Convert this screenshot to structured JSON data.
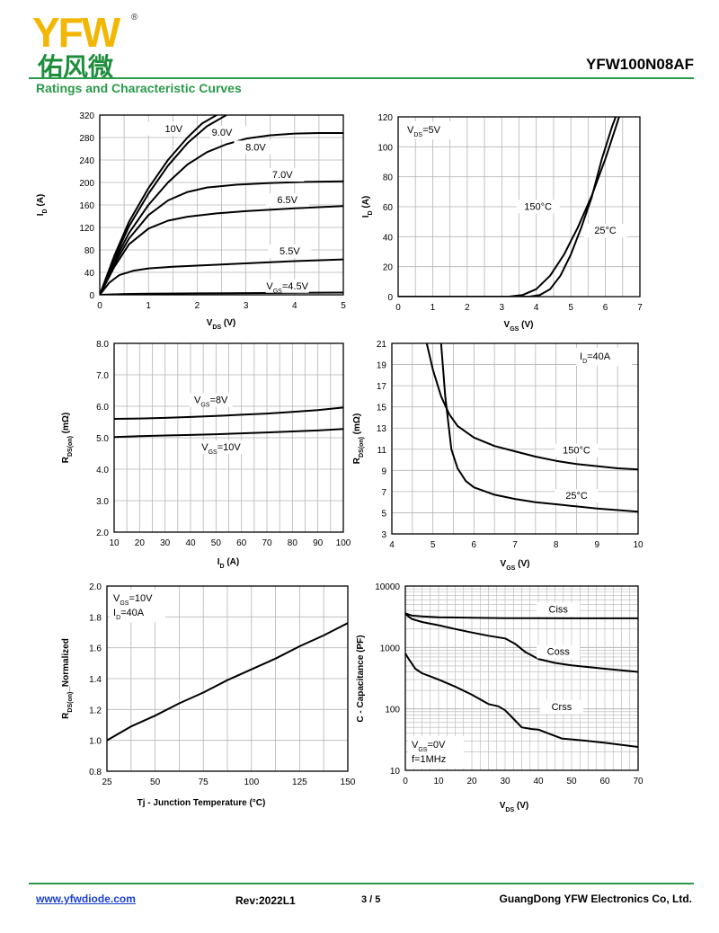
{
  "header": {
    "logo_text": "YFW",
    "logo_chinese": "佑风微",
    "registered_mark": "®",
    "part_number": "YFW100N08AF",
    "section_title": "Ratings and Characteristic Curves"
  },
  "footer": {
    "website": "www.yfwdiode.com",
    "revision": "Rev:2022L1",
    "page": "3 / 5",
    "company": "GuangDong YFW Electronics Co, Ltd."
  },
  "colors": {
    "accent": "#2a9a4a",
    "logo_yellow": "#f2b705",
    "logo_green": "#1f8e3c",
    "link": "#1a3fd0"
  },
  "chart_data": [
    {
      "id": "output",
      "type": "line",
      "xlabel": "VDS (V)",
      "ylabel": "ID (A)",
      "xlim": [
        0,
        5
      ],
      "ylim": [
        0,
        320
      ],
      "xticks": [
        0,
        1,
        2,
        3,
        4,
        5
      ],
      "yticks": [
        0,
        40,
        80,
        120,
        160,
        200,
        240,
        280,
        320
      ],
      "grid": true,
      "series": [
        {
          "name": "10V",
          "points": [
            [
              0,
              0
            ],
            [
              0.3,
              70
            ],
            [
              0.6,
              130
            ],
            [
              1.0,
              190
            ],
            [
              1.4,
              240
            ],
            [
              1.8,
              280
            ],
            [
              2.1,
              305
            ],
            [
              2.4,
              320
            ]
          ]
        },
        {
          "name": "9.0V",
          "points": [
            [
              0,
              0
            ],
            [
              0.3,
              65
            ],
            [
              0.6,
              122
            ],
            [
              1.0,
              180
            ],
            [
              1.4,
              230
            ],
            [
              1.8,
              270
            ],
            [
              2.2,
              300
            ],
            [
              2.6,
              320
            ]
          ]
        },
        {
          "name": "8.0V",
          "points": [
            [
              0,
              0
            ],
            [
              0.3,
              60
            ],
            [
              0.6,
              110
            ],
            [
              1.0,
              160
            ],
            [
              1.4,
              200
            ],
            [
              1.8,
              232
            ],
            [
              2.2,
              254
            ],
            [
              2.6,
              268
            ],
            [
              3.0,
              278
            ],
            [
              3.5,
              284
            ],
            [
              4.0,
              287
            ],
            [
              4.5,
              288
            ],
            [
              5.0,
              288
            ]
          ]
        },
        {
          "name": "7.0V",
          "points": [
            [
              0,
              0
            ],
            [
              0.3,
              55
            ],
            [
              0.6,
              100
            ],
            [
              1.0,
              142
            ],
            [
              1.4,
              168
            ],
            [
              1.8,
              183
            ],
            [
              2.2,
              191
            ],
            [
              2.8,
              196
            ],
            [
              3.5,
              199
            ],
            [
              4.2,
              201
            ],
            [
              5.0,
              202
            ]
          ]
        },
        {
          "name": "6.5V",
          "points": [
            [
              0,
              0
            ],
            [
              0.3,
              50
            ],
            [
              0.6,
              90
            ],
            [
              1.0,
              118
            ],
            [
              1.4,
              132
            ],
            [
              1.8,
              139
            ],
            [
              2.4,
              145
            ],
            [
              3.0,
              149
            ],
            [
              4.0,
              154
            ],
            [
              5.0,
              158
            ]
          ]
        },
        {
          "name": "5.5V",
          "points": [
            [
              0,
              0
            ],
            [
              0.2,
              22
            ],
            [
              0.4,
              35
            ],
            [
              0.7,
              43
            ],
            [
              1.0,
              47
            ],
            [
              1.5,
              50
            ],
            [
              2.0,
              52
            ],
            [
              3.0,
              56
            ],
            [
              4.0,
              60
            ],
            [
              5.0,
              63
            ]
          ]
        },
        {
          "name": "VGS=4.5V",
          "points": [
            [
              0,
              0
            ],
            [
              0.5,
              1.5
            ],
            [
              1,
              2
            ],
            [
              2,
              2.5
            ],
            [
              3,
              3
            ],
            [
              4,
              3.5
            ],
            [
              5,
              4
            ]
          ]
        }
      ]
    },
    {
      "id": "transfer",
      "type": "line",
      "xlabel": "VGS (V)",
      "ylabel": "ID (A)",
      "xlim": [
        0,
        7
      ],
      "ylim": [
        0,
        120
      ],
      "xticks": [
        0,
        1,
        2,
        3,
        4,
        5,
        6,
        7
      ],
      "yticks": [
        0,
        20,
        40,
        60,
        80,
        100,
        120
      ],
      "grid": true,
      "annotation": "VDS=5V",
      "series": [
        {
          "name": "150°C",
          "points": [
            [
              0,
              0
            ],
            [
              3.2,
              0
            ],
            [
              3.6,
              1
            ],
            [
              4.0,
              5
            ],
            [
              4.4,
              14
            ],
            [
              4.8,
              28
            ],
            [
              5.2,
              46
            ],
            [
              5.6,
              67
            ],
            [
              6.0,
              92
            ],
            [
              6.3,
              113
            ],
            [
              6.4,
              120
            ]
          ]
        },
        {
          "name": "25°C",
          "points": [
            [
              0,
              0
            ],
            [
              3.8,
              0
            ],
            [
              4.1,
              1
            ],
            [
              4.4,
              5
            ],
            [
              4.7,
              14
            ],
            [
              5.0,
              28
            ],
            [
              5.3,
              46
            ],
            [
              5.6,
              66
            ],
            [
              5.9,
              92
            ],
            [
              6.2,
              114
            ],
            [
              6.3,
              120
            ]
          ]
        }
      ]
    },
    {
      "id": "rds-vs-id",
      "type": "line",
      "xlabel": "ID (A)",
      "ylabel": "RDS(on) (mΩ)",
      "xlim": [
        10,
        100
      ],
      "ylim": [
        2.0,
        8.0
      ],
      "xticks": [
        10,
        20,
        30,
        40,
        50,
        60,
        70,
        80,
        90,
        100
      ],
      "yticks": [
        2.0,
        3.0,
        4.0,
        5.0,
        6.0,
        7.0,
        8.0
      ],
      "grid": true,
      "series": [
        {
          "name": "VGS=8V",
          "points": [
            [
              10,
              5.6
            ],
            [
              20,
              5.61
            ],
            [
              30,
              5.63
            ],
            [
              40,
              5.66
            ],
            [
              50,
              5.69
            ],
            [
              60,
              5.73
            ],
            [
              70,
              5.77
            ],
            [
              80,
              5.82
            ],
            [
              90,
              5.88
            ],
            [
              100,
              5.96
            ]
          ]
        },
        {
          "name": "VGS=10V",
          "points": [
            [
              10,
              5.02
            ],
            [
              20,
              5.05
            ],
            [
              30,
              5.07
            ],
            [
              40,
              5.09
            ],
            [
              50,
              5.11
            ],
            [
              60,
              5.14
            ],
            [
              70,
              5.17
            ],
            [
              80,
              5.2
            ],
            [
              90,
              5.23
            ],
            [
              100,
              5.28
            ]
          ]
        }
      ]
    },
    {
      "id": "rds-vs-vgs",
      "type": "line",
      "xlabel": "VGS (V)",
      "ylabel": "RDS(on) (mΩ)",
      "xlim": [
        4,
        10
      ],
      "ylim": [
        3,
        21
      ],
      "xticks": [
        4,
        5,
        6,
        7,
        8,
        9,
        10
      ],
      "yticks": [
        3,
        5,
        7,
        9,
        11,
        13,
        15,
        17,
        19,
        21
      ],
      "grid": true,
      "annotation": "ID=40A",
      "series": [
        {
          "name": "150°C",
          "points": [
            [
              4.85,
              21
            ],
            [
              5.0,
              18.5
            ],
            [
              5.2,
              16
            ],
            [
              5.4,
              14.3
            ],
            [
              5.6,
              13.2
            ],
            [
              6.0,
              12.1
            ],
            [
              6.5,
              11.3
            ],
            [
              7.0,
              10.8
            ],
            [
              7.5,
              10.3
            ],
            [
              8.0,
              9.9
            ],
            [
              8.5,
              9.6
            ],
            [
              9.0,
              9.4
            ],
            [
              9.5,
              9.2
            ],
            [
              10.0,
              9.1
            ]
          ]
        },
        {
          "name": "25°C",
          "points": [
            [
              5.2,
              21
            ],
            [
              5.3,
              16
            ],
            [
              5.45,
              11
            ],
            [
              5.6,
              9.2
            ],
            [
              5.8,
              8.0
            ],
            [
              6.0,
              7.4
            ],
            [
              6.5,
              6.7
            ],
            [
              7.0,
              6.3
            ],
            [
              7.5,
              6.0
            ],
            [
              8.0,
              5.8
            ],
            [
              8.5,
              5.6
            ],
            [
              9.0,
              5.4
            ],
            [
              9.5,
              5.25
            ],
            [
              10.0,
              5.1
            ]
          ]
        }
      ]
    },
    {
      "id": "rds-norm-vs-tj",
      "type": "line",
      "xlabel": "Tj - Junction Temperature (°C)",
      "ylabel": "RDS(on)_Normalized",
      "xlim": [
        25,
        150
      ],
      "ylim": [
        0.8,
        2.0
      ],
      "xticks": [
        25,
        50,
        75,
        100,
        125,
        150
      ],
      "yticks": [
        0.8,
        1.0,
        1.2,
        1.4,
        1.6,
        1.8,
        2.0
      ],
      "grid": true,
      "annotation": [
        "VGS=10V",
        "ID=40A"
      ],
      "series": [
        {
          "name": "",
          "points": [
            [
              25,
              1.0
            ],
            [
              37.5,
              1.09
            ],
            [
              50,
              1.16
            ],
            [
              62.5,
              1.24
            ],
            [
              75,
              1.31
            ],
            [
              87.5,
              1.39
            ],
            [
              100,
              1.46
            ],
            [
              112.5,
              1.53
            ],
            [
              125,
              1.61
            ],
            [
              137.5,
              1.68
            ],
            [
              150,
              1.76
            ]
          ]
        }
      ]
    },
    {
      "id": "capacitance",
      "type": "line",
      "scale": "log",
      "xlabel": "VDS (V)",
      "ylabel": "C - Capacitance (PF)",
      "xlim": [
        0,
        70
      ],
      "ylim": [
        10,
        10000
      ],
      "xticks": [
        0,
        10,
        20,
        30,
        40,
        50,
        60,
        70
      ],
      "yticks": [
        10,
        100,
        1000,
        10000
      ],
      "grid": true,
      "annotation": [
        "VGS=0V",
        "f=1MHz"
      ],
      "series": [
        {
          "name": "Ciss",
          "points": [
            [
              0,
              3600
            ],
            [
              2,
              3300
            ],
            [
              5,
              3200
            ],
            [
              10,
              3100
            ],
            [
              20,
              3050
            ],
            [
              30,
              3000
            ],
            [
              40,
              3000
            ],
            [
              50,
              2980
            ],
            [
              60,
              2980
            ],
            [
              70,
              2980
            ]
          ]
        },
        {
          "name": "Coss",
          "points": [
            [
              0,
              3500
            ],
            [
              2,
              2900
            ],
            [
              5,
              2600
            ],
            [
              10,
              2300
            ],
            [
              15,
              2000
            ],
            [
              20,
              1750
            ],
            [
              25,
              1550
            ],
            [
              30,
              1400
            ],
            [
              33,
              1150
            ],
            [
              36,
              850
            ],
            [
              40,
              650
            ],
            [
              45,
              560
            ],
            [
              50,
              510
            ],
            [
              55,
              480
            ],
            [
              60,
              450
            ],
            [
              70,
              400
            ]
          ]
        },
        {
          "name": "Crss",
          "points": [
            [
              0,
              800
            ],
            [
              1,
              650
            ],
            [
              3,
              450
            ],
            [
              5,
              380
            ],
            [
              8,
              330
            ],
            [
              10,
              300
            ],
            [
              15,
              230
            ],
            [
              20,
              170
            ],
            [
              25,
              120
            ],
            [
              28,
              110
            ],
            [
              30,
              95
            ],
            [
              33,
              65
            ],
            [
              35,
              50
            ],
            [
              38,
              47
            ],
            [
              40,
              46
            ],
            [
              43,
              40
            ],
            [
              47,
              33
            ],
            [
              55,
              30
            ],
            [
              60,
              28
            ],
            [
              70,
              24
            ]
          ]
        }
      ]
    }
  ]
}
